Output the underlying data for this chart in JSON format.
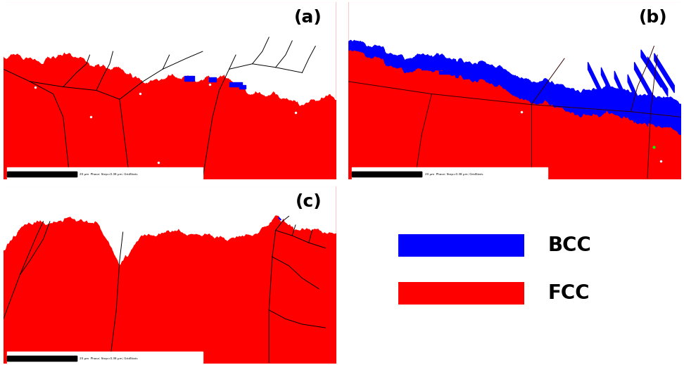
{
  "panels": [
    "(a)",
    "(b)",
    "(c)"
  ],
  "legend_labels": [
    "BCC",
    "FCC"
  ],
  "legend_colors": [
    "#0000ff",
    "#ff0000"
  ],
  "bg_color": "#ffffff",
  "red_color": "#ff0000",
  "blue_color": "#0000ff",
  "white_color": "#ffffff",
  "black_color": "#000000",
  "legend_fontsize": 20,
  "panel_label_fontsize": 18,
  "panel_label_weight": "bold"
}
